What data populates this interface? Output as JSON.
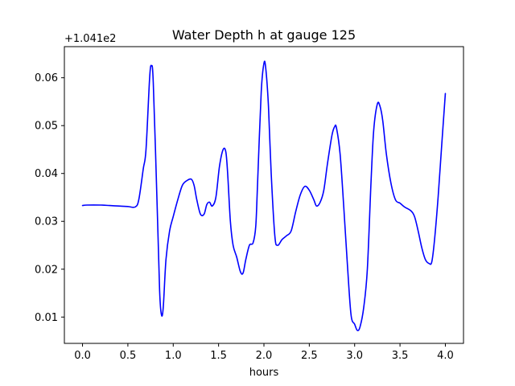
{
  "chart_data": {
    "type": "line",
    "title": "Water Depth h at gauge 125",
    "xlabel": "hours",
    "ylabel": "",
    "y_offset_text": "+1.041e2",
    "xlim": [
      -0.2,
      4.2
    ],
    "ylim": [
      0.0045,
      0.0665
    ],
    "x_ticks": [
      0.0,
      0.5,
      1.0,
      1.5,
      2.0,
      2.5,
      3.0,
      3.5,
      4.0
    ],
    "x_tick_labels": [
      "0.0",
      "0.5",
      "1.0",
      "1.5",
      "2.0",
      "2.5",
      "3.0",
      "3.5",
      "4.0"
    ],
    "y_ticks": [
      0.01,
      0.02,
      0.03,
      0.04,
      0.05,
      0.06
    ],
    "y_tick_labels": [
      "0.01",
      "0.02",
      "0.03",
      "0.04",
      "0.05",
      "0.06"
    ],
    "grid": false,
    "colors": {
      "line": "#0000ff",
      "axes": "#000000",
      "background": "#ffffff"
    },
    "series": [
      {
        "x": [
          0.0,
          0.05,
          0.2,
          0.3,
          0.4,
          0.5,
          0.58,
          0.62,
          0.67,
          0.7,
          0.74,
          0.76,
          0.78,
          0.82,
          0.85,
          0.87,
          0.89,
          0.92,
          0.96,
          1.0,
          1.05,
          1.1,
          1.15,
          1.2,
          1.23,
          1.26,
          1.3,
          1.34,
          1.37,
          1.4,
          1.43,
          1.47,
          1.51,
          1.55,
          1.58,
          1.6,
          1.63,
          1.66,
          1.7,
          1.74,
          1.77,
          1.8,
          1.84,
          1.88,
          1.91,
          1.93,
          1.97,
          2.0,
          2.02,
          2.05,
          2.08,
          2.12,
          2.15,
          2.2,
          2.25,
          2.3,
          2.35,
          2.4,
          2.45,
          2.5,
          2.55,
          2.58,
          2.62,
          2.66,
          2.7,
          2.75,
          2.78,
          2.8,
          2.84,
          2.88,
          2.92,
          2.96,
          3.0,
          3.03,
          3.06,
          3.1,
          3.14,
          3.18,
          3.21,
          3.25,
          3.28,
          3.31,
          3.35,
          3.4,
          3.45,
          3.5,
          3.55,
          3.62,
          3.66,
          3.7,
          3.74,
          3.78,
          3.82,
          3.85,
          3.88,
          3.92,
          3.96,
          4.0
        ],
        "y": [
          0.0333,
          0.0334,
          0.0334,
          0.0333,
          0.0332,
          0.0331,
          0.033,
          0.0345,
          0.041,
          0.045,
          0.06,
          0.0625,
          0.059,
          0.035,
          0.0155,
          0.0105,
          0.012,
          0.022,
          0.028,
          0.031,
          0.0345,
          0.0375,
          0.0385,
          0.0388,
          0.0375,
          0.0345,
          0.0315,
          0.0315,
          0.0335,
          0.034,
          0.0332,
          0.035,
          0.0415,
          0.045,
          0.0445,
          0.04,
          0.03,
          0.025,
          0.0225,
          0.0195,
          0.0192,
          0.022,
          0.025,
          0.0255,
          0.029,
          0.038,
          0.057,
          0.063,
          0.062,
          0.054,
          0.04,
          0.027,
          0.025,
          0.0262,
          0.027,
          0.028,
          0.032,
          0.0355,
          0.0373,
          0.0365,
          0.0345,
          0.0332,
          0.034,
          0.0365,
          0.042,
          0.048,
          0.0498,
          0.0495,
          0.044,
          0.033,
          0.021,
          0.0105,
          0.0085,
          0.0072,
          0.008,
          0.012,
          0.02,
          0.038,
          0.049,
          0.0545,
          0.054,
          0.051,
          0.044,
          0.038,
          0.0345,
          0.0338,
          0.033,
          0.0322,
          0.031,
          0.028,
          0.0245,
          0.022,
          0.0212,
          0.0215,
          0.026,
          0.035,
          0.046,
          0.0567
        ]
      }
    ]
  }
}
